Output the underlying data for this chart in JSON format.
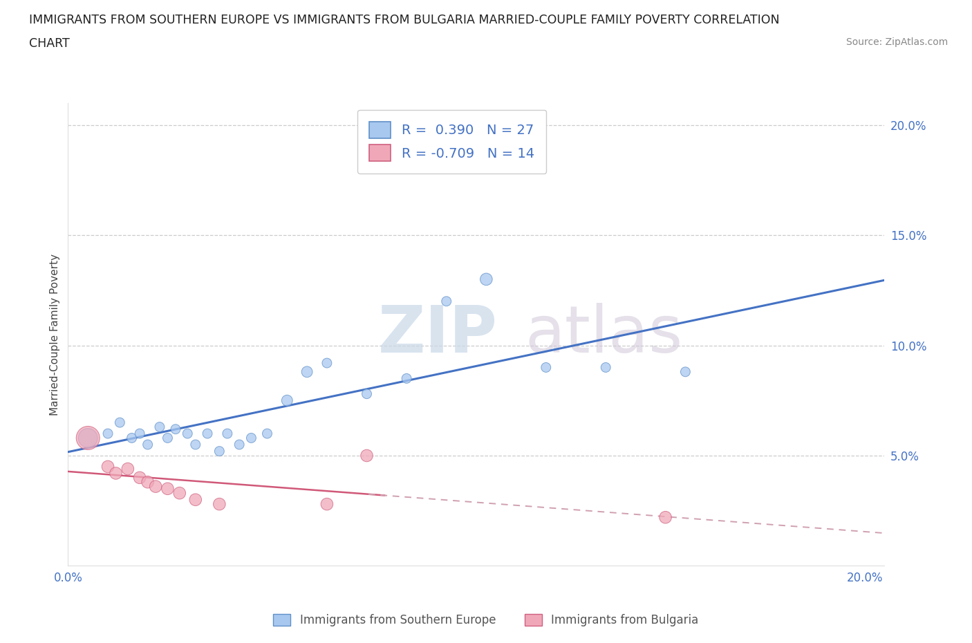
{
  "title_line1": "IMMIGRANTS FROM SOUTHERN EUROPE VS IMMIGRANTS FROM BULGARIA MARRIED-COUPLE FAMILY POVERTY CORRELATION",
  "title_line2": "CHART",
  "source": "Source: ZipAtlas.com",
  "ylabel": "Married-Couple Family Poverty",
  "xlim": [
    0.0,
    0.205
  ],
  "ylim": [
    0.0,
    0.21
  ],
  "xticks": [
    0.0,
    0.05,
    0.1,
    0.15,
    0.2
  ],
  "yticks": [
    0.05,
    0.1,
    0.15,
    0.2
  ],
  "blue_R": 0.39,
  "blue_N": 27,
  "pink_R": -0.709,
  "pink_N": 14,
  "blue_fill": "#A8C8F0",
  "pink_fill": "#F0A8B8",
  "blue_edge": "#6090C8",
  "pink_edge": "#D06080",
  "blue_line": "#4472C4",
  "pink_line_solid": "#D05878",
  "pink_line_dash": "#D0A0B0",
  "watermark_zip": "ZIP",
  "watermark_atlas": "atlas",
  "legend_blue": "Immigrants from Southern Europe",
  "legend_pink": "Immigrants from Bulgaria",
  "blue_x": [
    0.005,
    0.01,
    0.013,
    0.016,
    0.018,
    0.02,
    0.023,
    0.025,
    0.027,
    0.03,
    0.032,
    0.035,
    0.038,
    0.04,
    0.043,
    0.046,
    0.05,
    0.055,
    0.06,
    0.065,
    0.075,
    0.085,
    0.095,
    0.105,
    0.12,
    0.135,
    0.155
  ],
  "blue_y": [
    0.058,
    0.06,
    0.065,
    0.058,
    0.06,
    0.055,
    0.063,
    0.058,
    0.062,
    0.06,
    0.055,
    0.06,
    0.052,
    0.06,
    0.055,
    0.058,
    0.06,
    0.075,
    0.088,
    0.092,
    0.078,
    0.085,
    0.12,
    0.13,
    0.09,
    0.09,
    0.088
  ],
  "blue_size": [
    400,
    100,
    100,
    100,
    100,
    100,
    100,
    100,
    100,
    100,
    100,
    100,
    100,
    100,
    100,
    100,
    100,
    130,
    130,
    100,
    100,
    100,
    100,
    160,
    100,
    100,
    100
  ],
  "pink_x": [
    0.005,
    0.01,
    0.012,
    0.015,
    0.018,
    0.02,
    0.022,
    0.025,
    0.028,
    0.032,
    0.038,
    0.065,
    0.075,
    0.15
  ],
  "pink_y": [
    0.058,
    0.045,
    0.042,
    0.044,
    0.04,
    0.038,
    0.036,
    0.035,
    0.033,
    0.03,
    0.028,
    0.028,
    0.05,
    0.022
  ],
  "pink_size": [
    600,
    160,
    160,
    160,
    160,
    160,
    160,
    160,
    160,
    160,
    160,
    160,
    160,
    160
  ]
}
